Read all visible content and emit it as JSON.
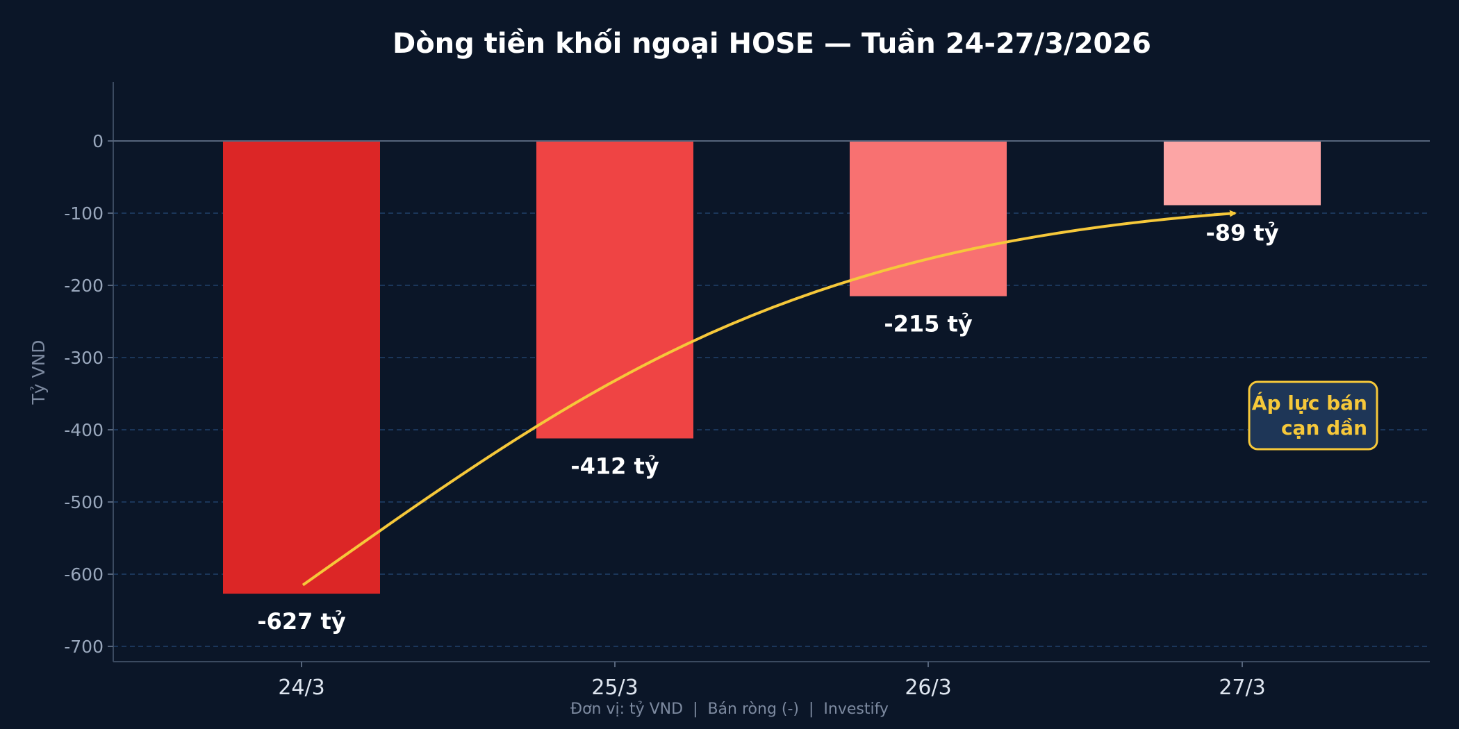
{
  "chart_data": {
    "type": "bar",
    "title": "Dòng tiền khối ngoại HOSE — Tuần 24-27/3/2026",
    "ylabel": "Tỷ VND",
    "xlabel": "",
    "categories": [
      "24/3",
      "25/3",
      "26/3",
      "27/3"
    ],
    "values": [
      -627,
      -412,
      -215,
      -89
    ],
    "data_labels": [
      "-627 tỷ",
      "-412 tỷ",
      "-215 tỷ",
      "-89 tỷ"
    ],
    "bar_colors": [
      "#dc2626",
      "#ef4444",
      "#f87171",
      "#fca5a5"
    ],
    "ylim": [
      -720,
      80
    ],
    "yticks": [
      0,
      -100,
      -200,
      -300,
      -400,
      -500,
      -600,
      -700
    ],
    "ytick_labels": [
      "0",
      "-100",
      "-200",
      "-300",
      "-400",
      "-500",
      "-600",
      "-700"
    ],
    "grid": "horizontal dashed",
    "trend_arrow": {
      "from": -615,
      "to": -100,
      "color": "#f6c83a"
    },
    "annotation": {
      "lines": [
        "Áp lực bán",
        "cạn dần"
      ],
      "color": "#f6c83a"
    },
    "footer": "Đơn vị: tỷ VND  |  Bán ròng (-)  |  Investify"
  }
}
